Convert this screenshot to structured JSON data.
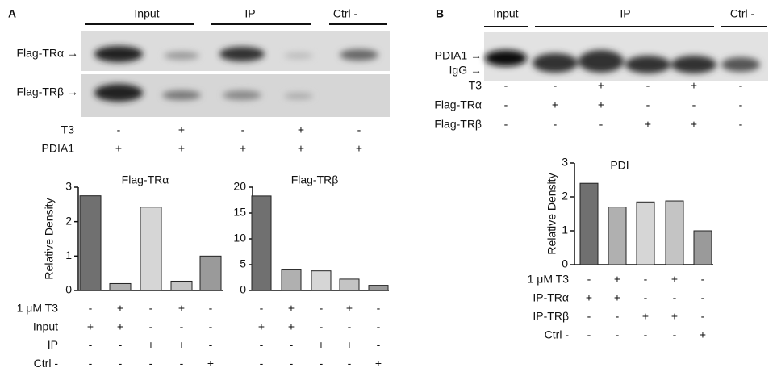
{
  "panel_a": {
    "label": "A",
    "headers": [
      "Input",
      "IP",
      "Ctrl -"
    ],
    "blots": [
      "Flag-TRα →",
      "Flag-TRβ →"
    ],
    "conditions": [
      {
        "name": "T3",
        "signs": [
          "-",
          "+",
          "-",
          "+",
          "-"
        ]
      },
      {
        "name": "PDIA1",
        "signs": [
          "+",
          "+",
          "+",
          "+",
          "+"
        ]
      }
    ]
  },
  "panel_b": {
    "label": "B",
    "headers": [
      "Input",
      "IP",
      "Ctrl -"
    ],
    "blots": [
      "PDIA1 →",
      "IgG →"
    ],
    "conditions": [
      {
        "name": "T3",
        "signs": [
          "-",
          "-",
          "+",
          "-",
          "+",
          "-"
        ]
      },
      {
        "name": "Flag-TRα",
        "signs": [
          "-",
          "+",
          "+",
          "-",
          "-",
          "-"
        ]
      },
      {
        "name": "Flag-TRβ",
        "signs": [
          "-",
          "-",
          "-",
          "+",
          "+",
          "-"
        ]
      }
    ]
  },
  "chart_data": [
    {
      "type": "bar",
      "title": "Flag-TRα",
      "y_label": "Relative Density",
      "values": [
        2.75,
        0.2,
        2.42,
        0.27,
        1.0
      ],
      "colors": [
        "#707070",
        "#b0b0b0",
        "#d6d6d6",
        "#c4c4c4",
        "#9a9a9a"
      ],
      "ylim": [
        0,
        3
      ],
      "yticks": [
        0,
        1,
        2,
        3
      ],
      "conditions": [
        {
          "name": "1 μM T3",
          "signs": [
            "-",
            "+",
            "-",
            "+",
            "-"
          ]
        },
        {
          "name": "Input",
          "signs": [
            "+",
            "+",
            "-",
            "-",
            "-"
          ]
        },
        {
          "name": "IP",
          "signs": [
            "-",
            "-",
            "+",
            "+",
            "-"
          ]
        },
        {
          "name": "Ctrl -",
          "signs": [
            "-",
            "-",
            "-",
            "-",
            "+"
          ]
        }
      ]
    },
    {
      "type": "bar",
      "title": "Flag-TRβ",
      "values": [
        18.3,
        4.0,
        3.8,
        2.2,
        1.0
      ],
      "colors": [
        "#707070",
        "#b0b0b0",
        "#d6d6d6",
        "#c4c4c4",
        "#9a9a9a"
      ],
      "ylim": [
        0,
        20
      ],
      "yticks": [
        0,
        5,
        10,
        15,
        20
      ],
      "conditions": [
        {
          "signs": [
            "-",
            "+",
            "-",
            "+",
            "-"
          ]
        },
        {
          "signs": [
            "+",
            "+",
            "-",
            "-",
            "-"
          ]
        },
        {
          "signs": [
            "-",
            "-",
            "+",
            "+",
            "-"
          ]
        },
        {
          "signs": [
            "-",
            "-",
            "-",
            "-",
            "+"
          ]
        }
      ]
    },
    {
      "type": "bar",
      "title": "PDI",
      "y_label": "Relative Density",
      "values": [
        2.4,
        1.7,
        1.85,
        1.88,
        1.0
      ],
      "colors": [
        "#707070",
        "#b0b0b0",
        "#d6d6d6",
        "#c4c4c4",
        "#9a9a9a"
      ],
      "ylim": [
        0,
        3
      ],
      "yticks": [
        0,
        1,
        2,
        3
      ],
      "conditions": [
        {
          "name": "1 μM T3",
          "signs": [
            "-",
            "+",
            "-",
            "+",
            "-"
          ]
        },
        {
          "name": "IP-TRα",
          "signs": [
            "+",
            "+",
            "-",
            "-",
            "-"
          ]
        },
        {
          "name": "IP-TRβ",
          "signs": [
            "-",
            "-",
            "+",
            "+",
            "-"
          ]
        },
        {
          "name": "Ctrl -",
          "signs": [
            "-",
            "-",
            "-",
            "-",
            "+"
          ]
        }
      ]
    }
  ]
}
